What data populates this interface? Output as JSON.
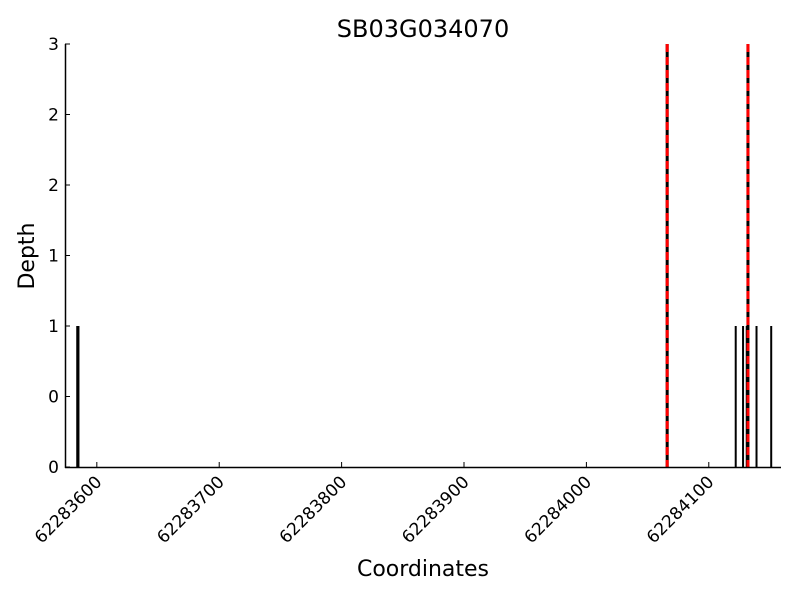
{
  "chart_data": {
    "type": "bar",
    "title": "SB03G034070",
    "xlabel": "Coordinates",
    "ylabel": "Depth",
    "xlim": [
      62283574,
      62284159
    ],
    "ylim": [
      0,
      3
    ],
    "x_ticks": [
      62283600,
      62283700,
      62283800,
      62283900,
      62284000,
      62284100
    ],
    "x_tick_labels": [
      "62283600",
      "62283700",
      "62283800",
      "62283900",
      "62284000",
      "62284100"
    ],
    "y_ticks": [
      0,
      0.5,
      1,
      1.5,
      2,
      2.5,
      3
    ],
    "y_tick_labels": [
      "0",
      "0",
      "1",
      "1",
      "2",
      "2",
      "3"
    ],
    "grid": false,
    "bars": {
      "x": [
        62283584,
        62283585,
        62284122,
        62284128,
        62284131,
        62284139,
        62284151
      ],
      "values": [
        1,
        1,
        1,
        1,
        1,
        1,
        1
      ],
      "color": "#000000"
    },
    "markers": {
      "x": [
        62284066,
        62284132
      ],
      "style": "dashed",
      "colors": [
        "#ff0000",
        "#000000"
      ]
    }
  }
}
